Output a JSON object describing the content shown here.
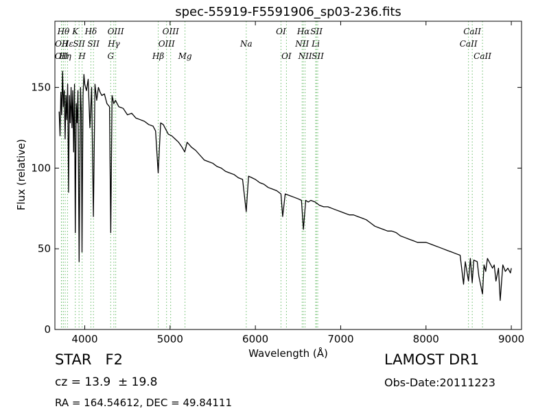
{
  "chart_data": {
    "type": "line",
    "title": "spec-55919-F5591906_sp03-236.fits",
    "xlabel": "Wavelength (Å)",
    "ylabel": "Flux (relative)",
    "xlim": [
      3650,
      9120
    ],
    "ylim": [
      0,
      191
    ],
    "xticks": [
      4000,
      5000,
      6000,
      7000,
      8000,
      9000
    ],
    "yticks": [
      0,
      50,
      100,
      150
    ],
    "grid": false,
    "line_color": "#000000",
    "marker_color": "#66bb66",
    "series": [
      {
        "x": [
          3700,
          3710,
          3720,
          3730,
          3740,
          3750,
          3760,
          3770,
          3780,
          3790,
          3800,
          3810,
          3820,
          3830,
          3840,
          3850,
          3860,
          3870,
          3880,
          3889,
          3900,
          3910,
          3920,
          3934,
          3950,
          3960,
          3968,
          3980,
          3990,
          4000,
          4020,
          4040,
          4060,
          4080,
          4101,
          4120,
          4140,
          4160,
          4180,
          4200,
          4230,
          4260,
          4290,
          4305,
          4320,
          4340,
          4360,
          4380,
          4400,
          4450,
          4500,
          4550,
          4600,
          4650,
          4700,
          4750,
          4800,
          4830,
          4861,
          4890,
          4920,
          4950,
          4980,
          5020,
          5060,
          5100,
          5140,
          5172,
          5200,
          5250,
          5300,
          5350,
          5400,
          5450,
          5500,
          5550,
          5600,
          5650,
          5700,
          5750,
          5800,
          5850,
          5893,
          5920,
          5960,
          6000,
          6050,
          6100,
          6150,
          6200,
          6250,
          6300,
          6320,
          6350,
          6400,
          6450,
          6500,
          6540,
          6563,
          6590,
          6620,
          6650,
          6700,
          6750,
          6800,
          6850,
          6900,
          6950,
          7000,
          7050,
          7100,
          7150,
          7200,
          7250,
          7300,
          7350,
          7400,
          7450,
          7500,
          7550,
          7600,
          7650,
          7700,
          7750,
          7800,
          7850,
          7900,
          7950,
          8000,
          8050,
          8100,
          8150,
          8200,
          8250,
          8300,
          8350,
          8400,
          8440,
          8460,
          8498,
          8520,
          8542,
          8560,
          8600,
          8620,
          8662,
          8680,
          8700,
          8720,
          8750,
          8780,
          8800,
          8820,
          8850,
          8870,
          8900,
          8930,
          8960,
          8990,
          9000
        ],
        "y": [
          135,
          120,
          147,
          133,
          160,
          138,
          148,
          118,
          145,
          130,
          152,
          85,
          145,
          128,
          150,
          125,
          148,
          110,
          152,
          60,
          140,
          128,
          148,
          42,
          150,
          135,
          48,
          145,
          158,
          152,
          148,
          155,
          125,
          150,
          70,
          152,
          142,
          150,
          147,
          145,
          146,
          140,
          138,
          60,
          145,
          140,
          142,
          140,
          138,
          137,
          133,
          134,
          131,
          130,
          129,
          127,
          126,
          123,
          97,
          128,
          127,
          124,
          121,
          120,
          118,
          116,
          113,
          110,
          116,
          113,
          111,
          108,
          105,
          104,
          103,
          101,
          100,
          98,
          97,
          96,
          94,
          93,
          73,
          95,
          94,
          93,
          91,
          90,
          88,
          87,
          86,
          84,
          70,
          84,
          83,
          82,
          81,
          80,
          62,
          80,
          79,
          80,
          79,
          77,
          76,
          76,
          75,
          74,
          73,
          72,
          71,
          71,
          70,
          69,
          68,
          66,
          64,
          63,
          62,
          61,
          61,
          60,
          58,
          57,
          56,
          55,
          54,
          54,
          54,
          53,
          52,
          51,
          50,
          49,
          48,
          47,
          46,
          28,
          42,
          30,
          44,
          29,
          43,
          42,
          33,
          22,
          40,
          36,
          44,
          41,
          38,
          40,
          30,
          38,
          18,
          40,
          36,
          38,
          35,
          38
        ]
      }
    ],
    "lines": [
      {
        "wave": 3726,
        "text": "OII",
        "row": 3
      },
      {
        "wave": 3729,
        "text": "OII",
        "row": 2
      },
      {
        "wave": 3750,
        "text": "Hθ",
        "row": 1
      },
      {
        "wave": 3771,
        "text": "Hη",
        "row": 3
      },
      {
        "wave": 3798,
        "text": "Hε",
        "row": 2
      },
      {
        "wave": 3889,
        "text": "K",
        "row": 1
      },
      {
        "wave": 3933,
        "text": "SII",
        "row": 2
      },
      {
        "wave": 3969,
        "text": "H",
        "row": 3
      },
      {
        "wave": 4072,
        "text": "Hδ",
        "row": 1
      },
      {
        "wave": 4102,
        "text": "SII",
        "row": 2
      },
      {
        "wave": 4304,
        "text": "G",
        "row": 3
      },
      {
        "wave": 4341,
        "text": "Hγ",
        "row": 2
      },
      {
        "wave": 4363,
        "text": "OIII",
        "row": 1
      },
      {
        "wave": 4861,
        "text": "Hβ",
        "row": 3
      },
      {
        "wave": 4959,
        "text": "OIII",
        "row": 2
      },
      {
        "wave": 5007,
        "text": "OIII",
        "row": 1
      },
      {
        "wave": 5175,
        "text": "Mg",
        "row": 3
      },
      {
        "wave": 5893,
        "text": "Na",
        "row": 2
      },
      {
        "wave": 6300,
        "text": "OI",
        "row": 1
      },
      {
        "wave": 6364,
        "text": "OI",
        "row": 3
      },
      {
        "wave": 6548,
        "text": "NII",
        "row": 2
      },
      {
        "wave": 6563,
        "text": "Hα",
        "row": 1
      },
      {
        "wave": 6583,
        "text": "NII",
        "row": 3
      },
      {
        "wave": 6707,
        "text": "Li",
        "row": 2
      },
      {
        "wave": 6716,
        "text": "SII",
        "row": 1
      },
      {
        "wave": 6731,
        "text": "SII",
        "row": 3
      },
      {
        "wave": 8498,
        "text": "CaII",
        "row": 2
      },
      {
        "wave": 8542,
        "text": "CaII",
        "row": 1
      },
      {
        "wave": 8662,
        "text": "CaII",
        "row": 3
      }
    ]
  },
  "info": {
    "object_class": "STAR   F2",
    "survey": "LAMOST DR1",
    "redshift": "cz = 13.9  ± 19.8",
    "obs_date": "Obs-Date:20111223",
    "coords": "RA = 164.54612, DEC = 49.84111"
  }
}
